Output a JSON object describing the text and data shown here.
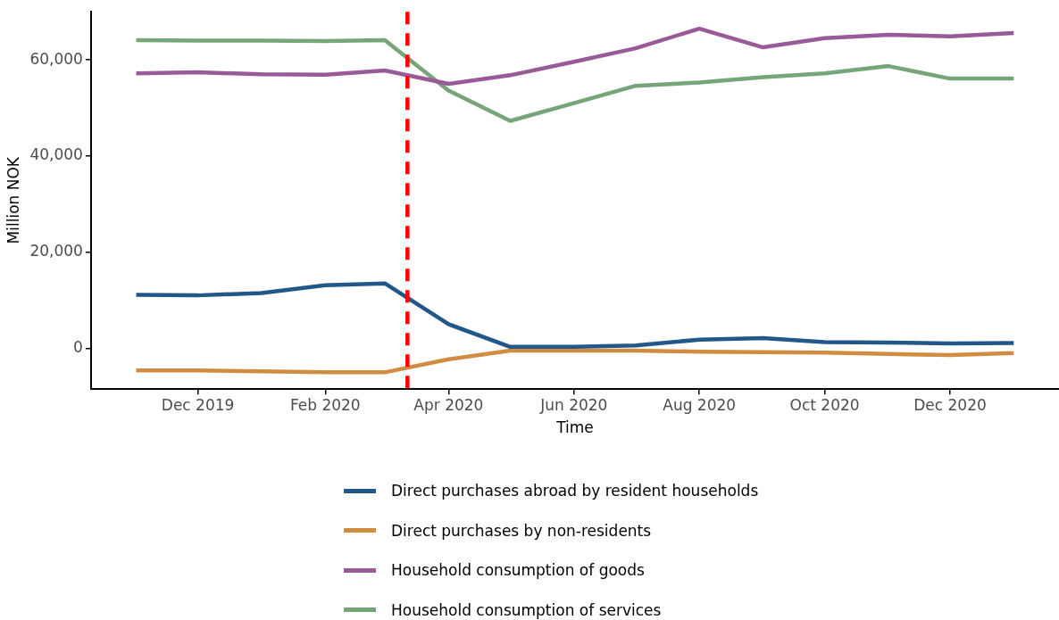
{
  "chart_data": {
    "type": "line",
    "xlabel": "Time",
    "ylabel": "Million NOK",
    "x": [
      "2019-11",
      "2019-12",
      "2020-01",
      "2020-02",
      "2020-03",
      "2020-04",
      "2020-05",
      "2020-06",
      "2020-07",
      "2020-08",
      "2020-09",
      "2020-10",
      "2020-11",
      "2020-12",
      "2021-01"
    ],
    "series": [
      {
        "name": "Direct purchases abroad by resident households",
        "color": "#22578a",
        "values": [
          11100,
          11000,
          11500,
          13100,
          13500,
          5000,
          300,
          300,
          600,
          1800,
          2100,
          1300,
          1200,
          1000,
          1100
        ]
      },
      {
        "name": "Direct purchases by non-residents",
        "color": "#d08c40",
        "values": [
          -4600,
          -4600,
          -4800,
          -5000,
          -5000,
          -2300,
          -500,
          -500,
          -500,
          -700,
          -800,
          -900,
          -1200,
          -1400,
          -1000
        ]
      },
      {
        "name": "Household consumption of goods",
        "color": "#985a98",
        "values": [
          57200,
          57400,
          57000,
          56900,
          57800,
          55000,
          56800,
          59600,
          62400,
          66500,
          62600,
          64500,
          65200,
          64900,
          65600
        ]
      },
      {
        "name": "Household consumption of services",
        "color": "#77a57a",
        "values": [
          64100,
          64000,
          64000,
          63900,
          64100,
          53600,
          47300,
          51000,
          54600,
          55300,
          56400,
          57200,
          58700,
          56100,
          56100
        ]
      }
    ],
    "xlim": [
      "2019-10-10",
      "2021-01-23"
    ],
    "xticks": [
      {
        "value": "2019-12",
        "label": "Dec 2019"
      },
      {
        "value": "2020-02",
        "label": "Feb 2020"
      },
      {
        "value": "2020-04",
        "label": "Apr 2020"
      },
      {
        "value": "2020-06",
        "label": "Jun 2020"
      },
      {
        "value": "2020-08",
        "label": "Aug 2020"
      },
      {
        "value": "2020-10",
        "label": "Oct 2020"
      },
      {
        "value": "2020-12",
        "label": "Dec 2020"
      }
    ],
    "ylim": [
      -8500,
      70000
    ],
    "yticks": [
      {
        "value": 0,
        "label": "0"
      },
      {
        "value": 20000,
        "label": "20,000"
      },
      {
        "value": 40000,
        "label": "40,000"
      },
      {
        "value": 60000,
        "label": "60,000"
      }
    ],
    "ref_lines": [
      {
        "axis": "x",
        "value": "2020-03-12",
        "color": "#ff0000",
        "line_style": "dashed"
      }
    ],
    "grid": false,
    "legend": "bottom",
    "marker": "none",
    "line_style": "solid"
  }
}
